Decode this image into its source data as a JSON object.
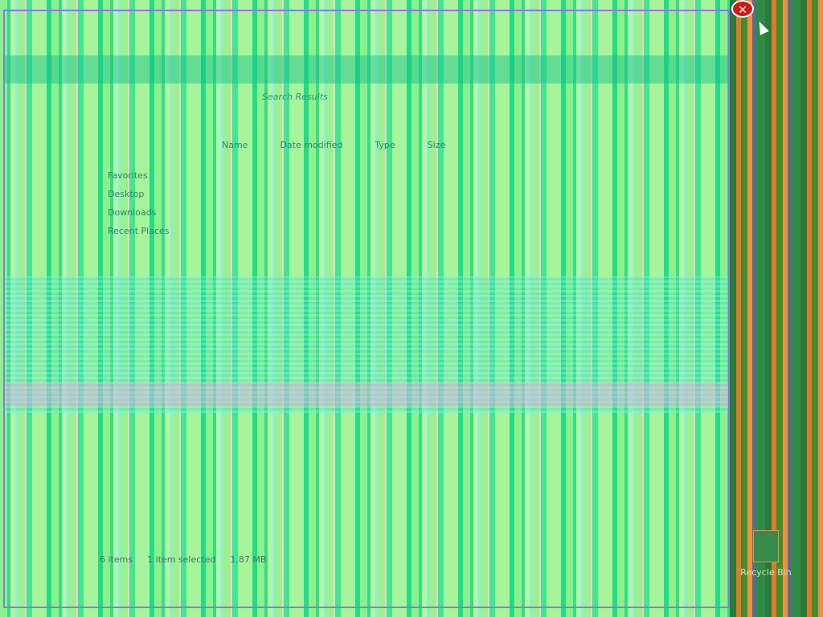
{
  "window": {
    "title": "Search Results",
    "close_icon": "close-icon",
    "sidebar": [
      "Favorites",
      "Desktop",
      "Downloads",
      "Recent Places"
    ],
    "columns": [
      "Name",
      "Date modified",
      "Type",
      "Size"
    ],
    "status": {
      "items": "6 items",
      "selected": "1 item selected",
      "size": "1.87 MB"
    }
  },
  "desktop": {
    "recycle_bin": "Recycle Bin"
  }
}
